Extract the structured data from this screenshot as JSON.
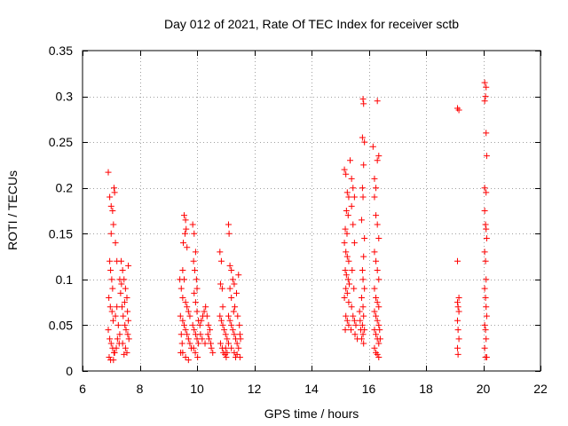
{
  "chart_data": {
    "type": "scatter",
    "title": "Day 012 of 2021, Rate Of TEC Index for receiver sctb",
    "xlabel": "GPS time / hours",
    "ylabel": "ROTI / TECUs",
    "xlim": [
      6,
      22
    ],
    "ylim": [
      0,
      0.35
    ],
    "xticks": [
      6,
      8,
      10,
      12,
      14,
      16,
      18,
      20,
      22
    ],
    "xtick_labels": [
      "6",
      "8",
      "10",
      "12",
      "14",
      "16",
      "18",
      "20",
      "22"
    ],
    "yticks": [
      0,
      0.05,
      0.1,
      0.15,
      0.2,
      0.25,
      0.3,
      0.35
    ],
    "ytick_labels": [
      "0",
      "0.05",
      "0.1",
      "0.15",
      "0.2",
      "0.25",
      "0.3",
      "0.35"
    ],
    "grid": true,
    "marker": "+",
    "color": "#ff0000",
    "series": [
      {
        "name": "ROTI",
        "points": [
          [
            6.9,
            0.217
          ],
          [
            6.95,
            0.19
          ],
          [
            7.0,
            0.18
          ],
          [
            7.05,
            0.175
          ],
          [
            7.1,
            0.2
          ],
          [
            7.12,
            0.195
          ],
          [
            7.08,
            0.16
          ],
          [
            7.0,
            0.15
          ],
          [
            6.95,
            0.12
          ],
          [
            6.98,
            0.11
          ],
          [
            7.02,
            0.1
          ],
          [
            7.05,
            0.09
          ],
          [
            6.92,
            0.08
          ],
          [
            6.97,
            0.07
          ],
          [
            7.03,
            0.065
          ],
          [
            7.07,
            0.055
          ],
          [
            6.9,
            0.045
          ],
          [
            6.95,
            0.035
          ],
          [
            7.0,
            0.03
          ],
          [
            7.05,
            0.025
          ],
          [
            7.1,
            0.02
          ],
          [
            6.93,
            0.015
          ],
          [
            6.98,
            0.012
          ],
          [
            7.08,
            0.012
          ],
          [
            7.15,
            0.06
          ],
          [
            7.2,
            0.07
          ],
          [
            7.25,
            0.05
          ],
          [
            7.3,
            0.04
          ],
          [
            7.22,
            0.035
          ],
          [
            7.28,
            0.03
          ],
          [
            7.18,
            0.025
          ],
          [
            7.12,
            0.02
          ],
          [
            7.35,
            0.12
          ],
          [
            7.4,
            0.11
          ],
          [
            7.45,
            0.1
          ],
          [
            7.5,
            0.09
          ],
          [
            7.55,
            0.08
          ],
          [
            7.6,
            0.115
          ],
          [
            7.38,
            0.07
          ],
          [
            7.42,
            0.06
          ],
          [
            7.48,
            0.05
          ],
          [
            7.52,
            0.045
          ],
          [
            7.58,
            0.04
          ],
          [
            7.62,
            0.035
          ],
          [
            7.4,
            0.03
          ],
          [
            7.5,
            0.025
          ],
          [
            7.55,
            0.02
          ],
          [
            7.45,
            0.018
          ],
          [
            7.33,
            0.085
          ],
          [
            7.47,
            0.075
          ],
          [
            7.57,
            0.065
          ],
          [
            7.36,
            0.095
          ],
          [
            7.6,
            0.055
          ],
          [
            7.3,
            0.1
          ],
          [
            7.2,
            0.12
          ],
          [
            7.15,
            0.14
          ],
          [
            9.55,
            0.17
          ],
          [
            9.6,
            0.165
          ],
          [
            9.62,
            0.155
          ],
          [
            9.58,
            0.15
          ],
          [
            9.52,
            0.14
          ],
          [
            9.65,
            0.135
          ],
          [
            9.5,
            0.11
          ],
          [
            9.55,
            0.1
          ],
          [
            9.45,
            0.09
          ],
          [
            9.5,
            0.08
          ],
          [
            9.6,
            0.075
          ],
          [
            9.65,
            0.07
          ],
          [
            9.7,
            0.065
          ],
          [
            9.75,
            0.06
          ],
          [
            9.5,
            0.055
          ],
          [
            9.55,
            0.05
          ],
          [
            9.6,
            0.045
          ],
          [
            9.65,
            0.04
          ],
          [
            9.7,
            0.035
          ],
          [
            9.75,
            0.03
          ],
          [
            9.8,
            0.025
          ],
          [
            9.5,
            0.02
          ],
          [
            9.6,
            0.015
          ],
          [
            9.7,
            0.012
          ],
          [
            9.85,
            0.16
          ],
          [
            9.9,
            0.15
          ],
          [
            9.95,
            0.13
          ],
          [
            9.88,
            0.12
          ],
          [
            9.92,
            0.11
          ],
          [
            9.98,
            0.1
          ],
          [
            10.0,
            0.09
          ],
          [
            9.9,
            0.085
          ],
          [
            9.95,
            0.075
          ],
          [
            10.0,
            0.065
          ],
          [
            10.05,
            0.055
          ],
          [
            9.85,
            0.05
          ],
          [
            9.9,
            0.045
          ],
          [
            9.95,
            0.04
          ],
          [
            10.0,
            0.035
          ],
          [
            10.05,
            0.03
          ],
          [
            9.88,
            0.025
          ],
          [
            9.94,
            0.02
          ],
          [
            10.02,
            0.015
          ],
          [
            9.4,
            0.1
          ],
          [
            9.42,
            0.06
          ],
          [
            9.45,
            0.04
          ],
          [
            9.48,
            0.03
          ],
          [
            9.43,
            0.02
          ],
          [
            10.1,
            0.05
          ],
          [
            10.15,
            0.055
          ],
          [
            10.2,
            0.06
          ],
          [
            10.25,
            0.065
          ],
          [
            10.3,
            0.07
          ],
          [
            10.12,
            0.04
          ],
          [
            10.18,
            0.035
          ],
          [
            10.28,
            0.03
          ],
          [
            10.35,
            0.06
          ],
          [
            10.4,
            0.05
          ],
          [
            10.45,
            0.045
          ],
          [
            10.38,
            0.04
          ],
          [
            10.42,
            0.035
          ],
          [
            10.48,
            0.03
          ],
          [
            10.5,
            0.025
          ],
          [
            10.55,
            0.02
          ],
          [
            10.8,
            0.13
          ],
          [
            10.85,
            0.12
          ],
          [
            10.82,
            0.095
          ],
          [
            10.88,
            0.09
          ],
          [
            10.9,
            0.07
          ],
          [
            10.8,
            0.06
          ],
          [
            10.85,
            0.055
          ],
          [
            10.9,
            0.05
          ],
          [
            10.95,
            0.045
          ],
          [
            11.0,
            0.04
          ],
          [
            11.05,
            0.035
          ],
          [
            10.82,
            0.03
          ],
          [
            10.88,
            0.025
          ],
          [
            10.92,
            0.02
          ],
          [
            10.98,
            0.018
          ],
          [
            11.02,
            0.015
          ],
          [
            11.1,
            0.16
          ],
          [
            11.12,
            0.15
          ],
          [
            11.15,
            0.115
          ],
          [
            11.2,
            0.11
          ],
          [
            11.25,
            0.1
          ],
          [
            11.3,
            0.095
          ],
          [
            11.15,
            0.09
          ],
          [
            11.2,
            0.08
          ],
          [
            11.1,
            0.06
          ],
          [
            11.15,
            0.055
          ],
          [
            11.2,
            0.05
          ],
          [
            11.25,
            0.045
          ],
          [
            11.3,
            0.04
          ],
          [
            11.35,
            0.035
          ],
          [
            11.4,
            0.03
          ],
          [
            11.45,
            0.025
          ],
          [
            11.1,
            0.03
          ],
          [
            11.2,
            0.025
          ],
          [
            11.3,
            0.02
          ],
          [
            11.4,
            0.018
          ],
          [
            11.5,
            0.015
          ],
          [
            11.0,
            0.025
          ],
          [
            11.05,
            0.02
          ],
          [
            11.35,
            0.015
          ],
          [
            11.45,
            0.105
          ],
          [
            11.38,
            0.085
          ],
          [
            11.42,
            0.06
          ],
          [
            11.48,
            0.05
          ],
          [
            11.5,
            0.04
          ],
          [
            11.52,
            0.035
          ],
          [
            11.32,
            0.07
          ],
          [
            11.28,
            0.065
          ],
          [
            15.15,
            0.22
          ],
          [
            15.2,
            0.215
          ],
          [
            15.25,
            0.195
          ],
          [
            15.3,
            0.19
          ],
          [
            15.22,
            0.175
          ],
          [
            15.28,
            0.17
          ],
          [
            15.18,
            0.155
          ],
          [
            15.24,
            0.15
          ],
          [
            15.15,
            0.14
          ],
          [
            15.2,
            0.13
          ],
          [
            15.25,
            0.125
          ],
          [
            15.3,
            0.12
          ],
          [
            15.18,
            0.11
          ],
          [
            15.22,
            0.105
          ],
          [
            15.28,
            0.1
          ],
          [
            15.32,
            0.095
          ],
          [
            15.2,
            0.09
          ],
          [
            15.25,
            0.085
          ],
          [
            15.15,
            0.08
          ],
          [
            15.3,
            0.075
          ],
          [
            15.2,
            0.06
          ],
          [
            15.25,
            0.055
          ],
          [
            15.3,
            0.05
          ],
          [
            15.18,
            0.045
          ],
          [
            15.35,
            0.23
          ],
          [
            15.4,
            0.21
          ],
          [
            15.45,
            0.2
          ],
          [
            15.5,
            0.19
          ],
          [
            15.4,
            0.18
          ],
          [
            15.45,
            0.16
          ],
          [
            15.5,
            0.14
          ],
          [
            15.42,
            0.11
          ],
          [
            15.48,
            0.09
          ],
          [
            15.4,
            0.07
          ],
          [
            15.45,
            0.06
          ],
          [
            15.5,
            0.055
          ],
          [
            15.55,
            0.05
          ],
          [
            15.38,
            0.045
          ],
          [
            15.52,
            0.04
          ],
          [
            15.6,
            0.035
          ],
          [
            15.8,
            0.297
          ],
          [
            15.82,
            0.292
          ],
          [
            15.78,
            0.255
          ],
          [
            15.85,
            0.25
          ],
          [
            15.82,
            0.225
          ],
          [
            15.78,
            0.2
          ],
          [
            15.8,
            0.19
          ],
          [
            15.75,
            0.165
          ],
          [
            15.85,
            0.145
          ],
          [
            15.82,
            0.125
          ],
          [
            15.78,
            0.11
          ],
          [
            15.8,
            0.1
          ],
          [
            15.85,
            0.09
          ],
          [
            15.75,
            0.08
          ],
          [
            15.8,
            0.07
          ],
          [
            15.82,
            0.06
          ],
          [
            15.78,
            0.05
          ],
          [
            15.85,
            0.045
          ],
          [
            15.8,
            0.04
          ],
          [
            15.75,
            0.035
          ],
          [
            15.82,
            0.03
          ],
          [
            15.7,
            0.055
          ],
          [
            15.72,
            0.045
          ],
          [
            15.68,
            0.065
          ],
          [
            16.15,
            0.245
          ],
          [
            16.2,
            0.21
          ],
          [
            16.25,
            0.2
          ],
          [
            16.3,
            0.23
          ],
          [
            16.35,
            0.235
          ],
          [
            16.3,
            0.295
          ],
          [
            16.2,
            0.19
          ],
          [
            16.25,
            0.17
          ],
          [
            16.3,
            0.16
          ],
          [
            16.35,
            0.145
          ],
          [
            16.2,
            0.13
          ],
          [
            16.25,
            0.12
          ],
          [
            16.3,
            0.11
          ],
          [
            16.35,
            0.1
          ],
          [
            16.2,
            0.09
          ],
          [
            16.25,
            0.08
          ],
          [
            16.3,
            0.075
          ],
          [
            16.35,
            0.07
          ],
          [
            16.2,
            0.065
          ],
          [
            16.25,
            0.06
          ],
          [
            16.3,
            0.055
          ],
          [
            16.35,
            0.05
          ],
          [
            16.2,
            0.045
          ],
          [
            16.25,
            0.04
          ],
          [
            16.3,
            0.035
          ],
          [
            16.35,
            0.03
          ],
          [
            16.2,
            0.025
          ],
          [
            16.25,
            0.02
          ],
          [
            16.3,
            0.018
          ],
          [
            16.35,
            0.015
          ],
          [
            16.4,
            0.035
          ],
          [
            16.38,
            0.045
          ],
          [
            19.1,
            0.287
          ],
          [
            19.15,
            0.285
          ],
          [
            19.1,
            0.12
          ],
          [
            19.15,
            0.08
          ],
          [
            19.1,
            0.075
          ],
          [
            19.12,
            0.07
          ],
          [
            19.15,
            0.065
          ],
          [
            19.1,
            0.055
          ],
          [
            19.12,
            0.045
          ],
          [
            19.15,
            0.035
          ],
          [
            19.1,
            0.025
          ],
          [
            19.12,
            0.018
          ],
          [
            20.05,
            0.315
          ],
          [
            20.1,
            0.31
          ],
          [
            20.08,
            0.3
          ],
          [
            20.05,
            0.295
          ],
          [
            20.1,
            0.26
          ],
          [
            20.12,
            0.235
          ],
          [
            20.05,
            0.2
          ],
          [
            20.1,
            0.195
          ],
          [
            20.05,
            0.175
          ],
          [
            20.08,
            0.16
          ],
          [
            20.1,
            0.155
          ],
          [
            20.12,
            0.145
          ],
          [
            20.05,
            0.13
          ],
          [
            20.08,
            0.12
          ],
          [
            20.1,
            0.1
          ],
          [
            20.05,
            0.09
          ],
          [
            20.08,
            0.08
          ],
          [
            20.1,
            0.07
          ],
          [
            20.12,
            0.06
          ],
          [
            20.05,
            0.05
          ],
          [
            20.08,
            0.045
          ],
          [
            20.1,
            0.035
          ],
          [
            20.05,
            0.025
          ],
          [
            20.08,
            0.015
          ],
          [
            20.12,
            0.015
          ]
        ]
      }
    ]
  }
}
